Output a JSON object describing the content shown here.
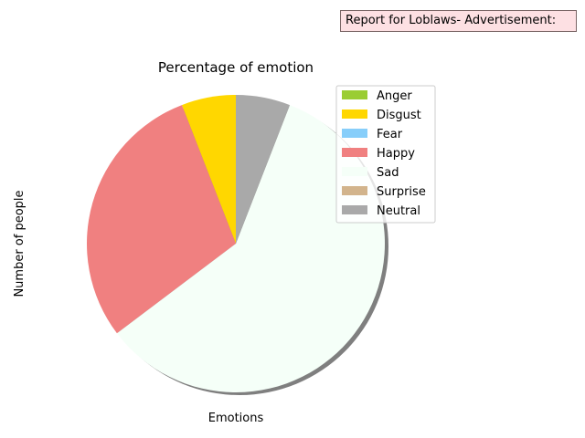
{
  "report": {
    "text": "Report for Loblaws- Advertisement:"
  },
  "chart_data": {
    "type": "pie",
    "title": "Percentage of emotion",
    "xlabel": "Emotions",
    "ylabel": "Number of people",
    "shadow": true,
    "start_angle_deg": 90,
    "direction": "counterclockwise",
    "legend_position": "upper-right",
    "categories": [
      "Anger",
      "Disgust",
      "Fear",
      "Happy",
      "Sad",
      "Surprise",
      "Neutral"
    ],
    "values": [
      0,
      5.9,
      0,
      29.4,
      58.8,
      0,
      5.9
    ],
    "colors": [
      "#9acd32",
      "#ffd700",
      "#87cefa",
      "#f08080",
      "#f5fff8",
      "#d2b48c",
      "#a9a9a9"
    ]
  }
}
